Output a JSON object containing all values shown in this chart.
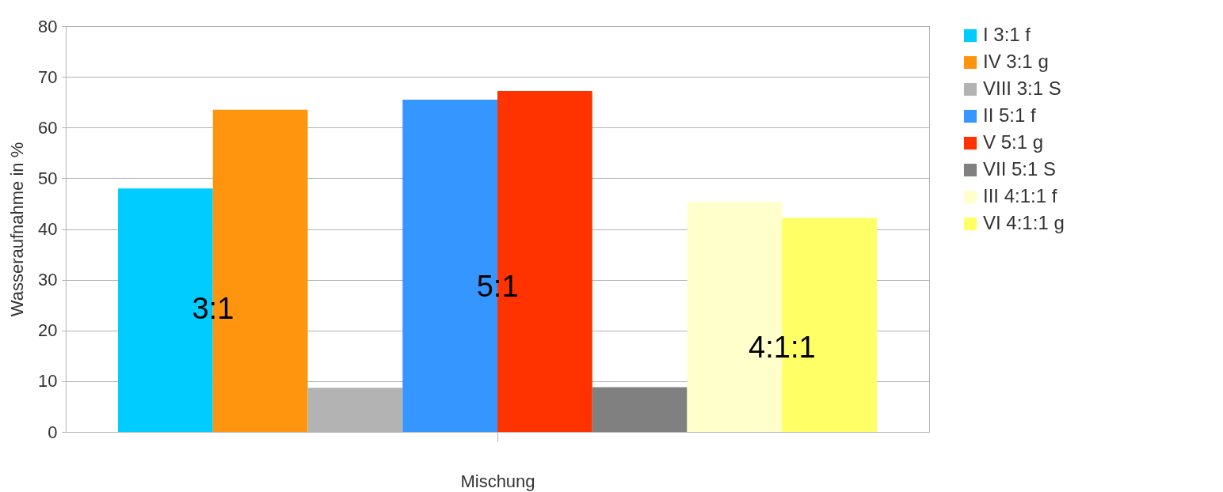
{
  "chart_data": {
    "type": "bar",
    "xlabel": "Mischung",
    "ylabel": "Wasseraufnahme in %",
    "categories": [
      null
    ],
    "series": [
      {
        "name": "I 3:1 f",
        "color": "#00ccff",
        "values": [
          48
        ]
      },
      {
        "name": "IV 3:1 g",
        "color": "#ff950e",
        "values": [
          63.5
        ]
      },
      {
        "name": "VIII 3:1 S",
        "color": "#b3b3b3",
        "values": [
          8.7
        ]
      },
      {
        "name": "II 5:1 f",
        "color": "#3596ff",
        "values": [
          65.5
        ]
      },
      {
        "name": "V 5:1 g",
        "color": "#ff3300",
        "values": [
          67.2
        ]
      },
      {
        "name": "VII 5:1 S",
        "color": "#808080",
        "values": [
          8.8
        ]
      },
      {
        "name": "III 4:1:1 f",
        "color": "#ffffcc",
        "values": [
          45.3
        ]
      },
      {
        "name": "VI 4:1:1 g",
        "color": "#ffff66",
        "values": [
          42.2
        ]
      }
    ],
    "ylim": [
      0,
      80
    ],
    "yticks": [
      0,
      10,
      20,
      30,
      40,
      50,
      60,
      70,
      80
    ],
    "grid": "y",
    "legend": "top right",
    "tick_labels": "y",
    "annotations": [
      "3:1",
      "5:1",
      "4:1:1"
    ]
  }
}
